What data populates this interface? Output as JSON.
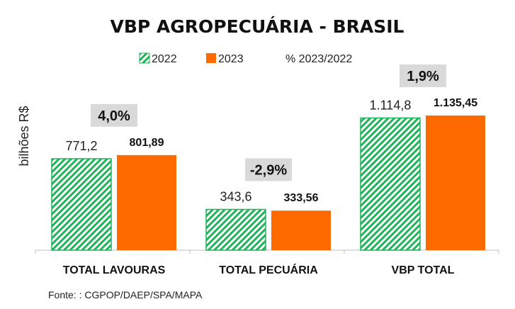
{
  "chart_data": {
    "type": "bar",
    "title": "VBP AGROPECUÁRIA  - BRASIL",
    "ylabel": "bilhões R$",
    "categories": [
      "TOTAL LAVOURAS",
      "TOTAL PECUÁRIA",
      "VBP TOTAL"
    ],
    "series": [
      {
        "name": "2022",
        "values": [
          771.2,
          343.6,
          1114.8
        ],
        "labels": [
          "771,2",
          "343,6",
          "1.114,8"
        ],
        "color": "#1fb35a",
        "pattern": "diagonal-hatch"
      },
      {
        "name": "2023",
        "values": [
          801.89,
          333.56,
          1135.45
        ],
        "labels": [
          "801,89",
          "333,56",
          "1.135,45"
        ],
        "color": "#ff6a00"
      }
    ],
    "pct_change": {
      "name": "% 2023/2022",
      "labels": [
        "4,0%",
        "-2,9%",
        "1,9%"
      ],
      "box_color": "#d9d9d9"
    },
    "ylim": [
      0,
      1400
    ],
    "grid": false,
    "legend_position": "top"
  },
  "source": "Fonte: : CGPOP/DAEP/SPA/MAPA"
}
